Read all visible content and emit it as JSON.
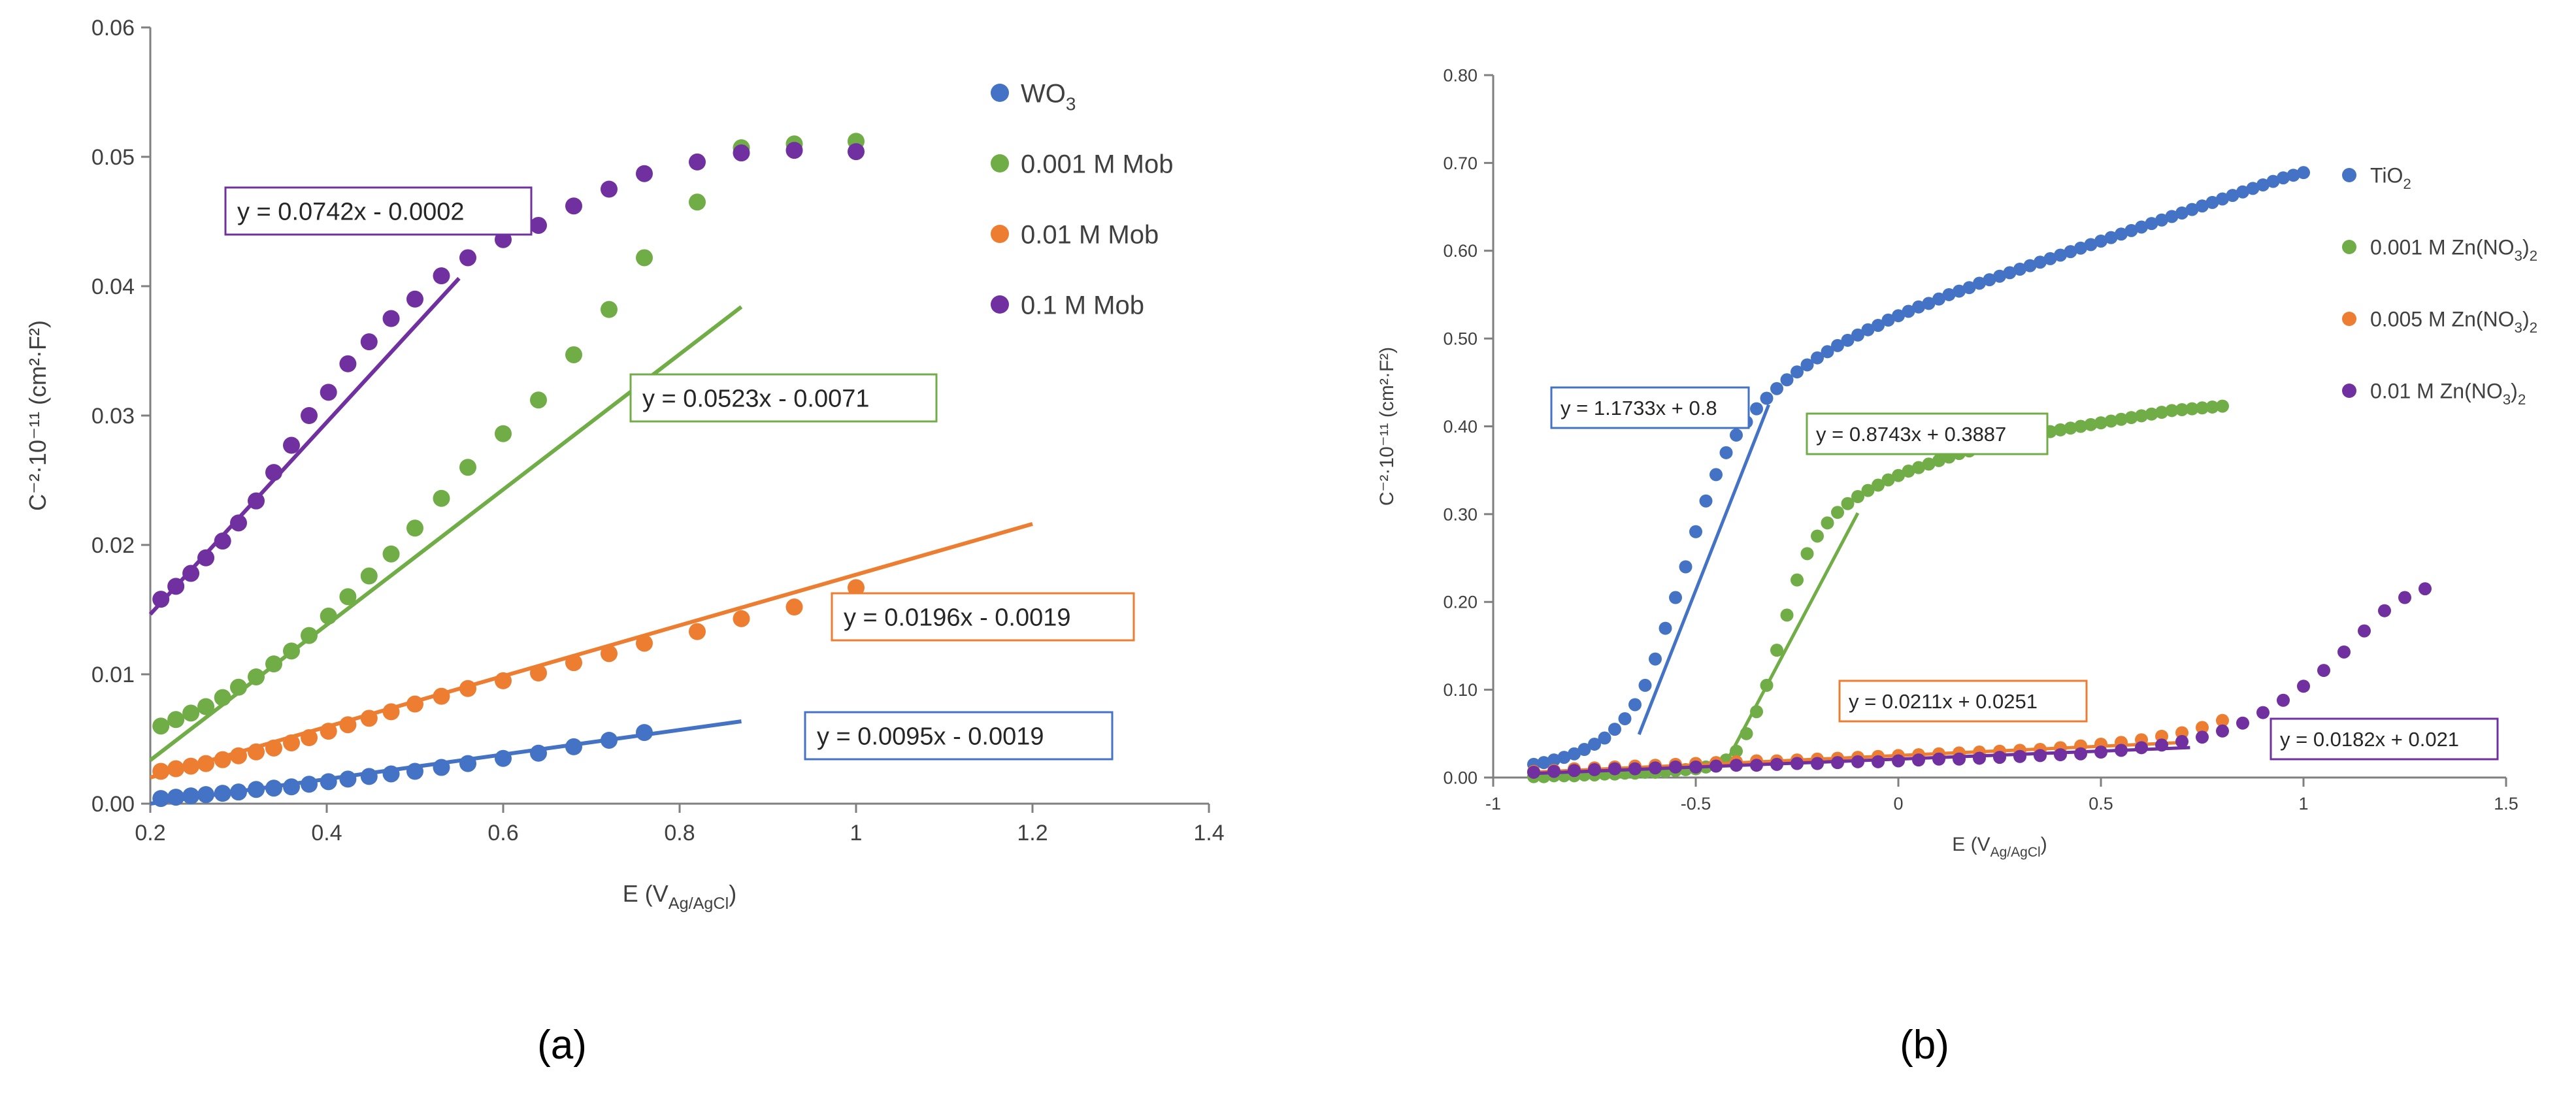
{
  "chart_data": [
    {
      "type": "scatter",
      "panel_label": "(a)",
      "xlabel": "E (V",
      "xlabel_sub": "Ag/AgCl",
      "xlabel_close": ")",
      "ylabel": "C⁻²·10⁻¹¹ (cm²·F²)",
      "xlim": [
        0.2,
        1.4
      ],
      "ylim": [
        0,
        0.06
      ],
      "xticks": [
        0.2,
        0.4,
        0.6,
        0.8,
        1.0,
        1.2,
        1.4
      ],
      "xtick_labels": [
        "0.2",
        "0.4",
        "0.6",
        "0.8",
        "1",
        "1.2",
        "1.4"
      ],
      "yticks": [
        0,
        0.01,
        0.02,
        0.03,
        0.04,
        0.05,
        0.06
      ],
      "ytick_labels": [
        "0.00",
        "0.01",
        "0.02",
        "0.03",
        "0.04",
        "0.05",
        "0.06"
      ],
      "legend_position": "top-right",
      "series": [
        {
          "name": "WO",
          "name_sub": "3",
          "color": "#4472c4",
          "x": [
            0.212,
            0.229,
            0.246,
            0.263,
            0.282,
            0.3,
            0.32,
            0.34,
            0.36,
            0.38,
            0.402,
            0.424,
            0.448,
            0.473,
            0.5,
            0.53,
            0.56,
            0.6,
            0.64,
            0.68,
            0.72,
            0.76
          ],
          "y": [
            0.0004,
            0.0005,
            0.0006,
            0.0007,
            0.0008,
            0.0009,
            0.0011,
            0.0012,
            0.0013,
            0.0015,
            0.0017,
            0.0019,
            0.0021,
            0.0023,
            0.0025,
            0.0028,
            0.0031,
            0.0035,
            0.0039,
            0.0044,
            0.0049,
            0.0055
          ],
          "fit": {
            "label": "y = 0.0095x - 0.0019",
            "slope": 0.0095,
            "intercept": -0.0019,
            "x_range": [
              0.2,
              0.87
            ],
            "label_position": "lower-right"
          }
        },
        {
          "name": "0.001 M Mob",
          "color": "#70ad47",
          "x": [
            0.212,
            0.229,
            0.246,
            0.263,
            0.282,
            0.3,
            0.32,
            0.34,
            0.36,
            0.38,
            0.402,
            0.424,
            0.448,
            0.473,
            0.5,
            0.53,
            0.56,
            0.6,
            0.64,
            0.68,
            0.72,
            0.76,
            0.82,
            0.87,
            0.93,
            1.0
          ],
          "y": [
            0.006,
            0.0065,
            0.007,
            0.0075,
            0.0082,
            0.009,
            0.0098,
            0.0108,
            0.0118,
            0.013,
            0.0145,
            0.016,
            0.0176,
            0.0193,
            0.0213,
            0.0236,
            0.026,
            0.0286,
            0.0312,
            0.0347,
            0.0382,
            0.0422,
            0.0465,
            0.0507,
            0.051,
            0.0512
          ],
          "fit": {
            "label": "y = 0.0523x - 0.0071",
            "slope": 0.0523,
            "intercept": -0.0071,
            "x_range": [
              0.2,
              0.87
            ],
            "label_position": "middle"
          }
        },
        {
          "name": "0.01 M Mob",
          "color": "#ed7d31",
          "x": [
            0.212,
            0.229,
            0.246,
            0.263,
            0.282,
            0.3,
            0.32,
            0.34,
            0.36,
            0.38,
            0.402,
            0.424,
            0.448,
            0.473,
            0.5,
            0.53,
            0.56,
            0.6,
            0.64,
            0.68,
            0.72,
            0.76,
            0.82,
            0.87,
            0.93,
            1.0
          ],
          "y": [
            0.0025,
            0.0027,
            0.0029,
            0.0031,
            0.0034,
            0.0037,
            0.004,
            0.0043,
            0.0047,
            0.0051,
            0.0056,
            0.0061,
            0.0066,
            0.0071,
            0.0077,
            0.0083,
            0.0089,
            0.0095,
            0.0101,
            0.0109,
            0.0116,
            0.0124,
            0.0133,
            0.0143,
            0.0152,
            0.0167
          ],
          "fit": {
            "label": "y = 0.0196x - 0.0019",
            "slope": 0.0196,
            "intercept": -0.0019,
            "x_range": [
              0.2,
              1.2
            ],
            "label_position": "right"
          }
        },
        {
          "name": "0.1 M Mob",
          "color": "#7030a0",
          "x": [
            0.212,
            0.229,
            0.246,
            0.263,
            0.282,
            0.3,
            0.32,
            0.34,
            0.36,
            0.38,
            0.402,
            0.424,
            0.448,
            0.473,
            0.5,
            0.53,
            0.56,
            0.6,
            0.64,
            0.68,
            0.72,
            0.76,
            0.82,
            0.87,
            0.93,
            1.0
          ],
          "y": [
            0.0158,
            0.0168,
            0.0178,
            0.019,
            0.0203,
            0.0217,
            0.0234,
            0.0256,
            0.0277,
            0.03,
            0.0318,
            0.034,
            0.0357,
            0.0375,
            0.039,
            0.0408,
            0.0422,
            0.0436,
            0.0447,
            0.0462,
            0.0475,
            0.0487,
            0.0496,
            0.0503,
            0.0505,
            0.0504
          ],
          "fit": {
            "label": "y = 0.0742x - 0.0002",
            "slope": 0.0742,
            "intercept": -0.0002,
            "x_range": [
              0.2,
              0.55
            ],
            "label_position": "top-left"
          }
        }
      ]
    },
    {
      "type": "scatter",
      "panel_label": "(b)",
      "xlabel": "E (V",
      "xlabel_sub": "Ag/AgCl",
      "xlabel_close": ")",
      "ylabel": "C⁻²·10⁻¹¹ (cm²·F²)",
      "xlim": [
        -1,
        1.5
      ],
      "ylim": [
        0,
        0.8
      ],
      "xticks": [
        -1,
        -0.5,
        0,
        0.5,
        1,
        1.5
      ],
      "xtick_labels": [
        "-1",
        "-0.5",
        "0",
        "0.5",
        "1",
        "1.5"
      ],
      "yticks": [
        0,
        0.1,
        0.2,
        0.3,
        0.4,
        0.5,
        0.6,
        0.7,
        0.8
      ],
      "ytick_labels": [
        "0.00",
        "0.10",
        "0.20",
        "0.30",
        "0.40",
        "0.50",
        "0.60",
        "0.70",
        "0.80"
      ],
      "legend_position": "top-right",
      "series": [
        {
          "name": "TiO",
          "name_sub": "2",
          "color": "#4472c4",
          "x": [
            -0.9,
            -0.875,
            -0.85,
            -0.825,
            -0.8,
            -0.775,
            -0.75,
            -0.725,
            -0.7,
            -0.675,
            -0.65,
            -0.625,
            -0.6,
            -0.575,
            -0.55,
            -0.525,
            -0.5,
            -0.475,
            -0.45,
            -0.425,
            -0.4,
            -0.375,
            -0.35,
            -0.325,
            -0.3,
            -0.275,
            -0.25,
            -0.225,
            -0.2,
            -0.175,
            -0.15,
            -0.125,
            -0.1,
            -0.075,
            -0.05,
            -0.025,
            0,
            0.025,
            0.05,
            0.075,
            0.1,
            0.125,
            0.15,
            0.175,
            0.2,
            0.225,
            0.25,
            0.275,
            0.3,
            0.325,
            0.35,
            0.375,
            0.4,
            0.425,
            0.45,
            0.475,
            0.5,
            0.525,
            0.55,
            0.575,
            0.6,
            0.625,
            0.65,
            0.675,
            0.7,
            0.725,
            0.75,
            0.775,
            0.8,
            0.825,
            0.85,
            0.875,
            0.9,
            0.925,
            0.95,
            0.975,
            1.0
          ],
          "y": [
            0.015,
            0.017,
            0.02,
            0.023,
            0.027,
            0.032,
            0.038,
            0.045,
            0.055,
            0.067,
            0.083,
            0.105,
            0.135,
            0.17,
            0.205,
            0.24,
            0.28,
            0.315,
            0.345,
            0.37,
            0.39,
            0.405,
            0.42,
            0.432,
            0.443,
            0.453,
            0.462,
            0.47,
            0.478,
            0.485,
            0.492,
            0.498,
            0.504,
            0.51,
            0.515,
            0.521,
            0.526,
            0.531,
            0.536,
            0.54,
            0.545,
            0.55,
            0.554,
            0.558,
            0.563,
            0.567,
            0.571,
            0.575,
            0.579,
            0.583,
            0.587,
            0.591,
            0.595,
            0.599,
            0.603,
            0.607,
            0.611,
            0.615,
            0.619,
            0.623,
            0.627,
            0.631,
            0.635,
            0.639,
            0.643,
            0.647,
            0.651,
            0.655,
            0.659,
            0.663,
            0.667,
            0.671,
            0.675,
            0.679,
            0.683,
            0.686,
            0.689
          ],
          "fit": {
            "label": "y = 1.1733x + 0.8",
            "slope": 1.1733,
            "intercept": 0.8,
            "x_range": [
              -0.64,
              -0.32
            ],
            "label_position": "left"
          }
        },
        {
          "name": "0.001 M Zn(NO",
          "name_sub": "3",
          "name_close": ")",
          "name_sub2": "2",
          "color": "#70ad47",
          "x": [
            -0.9,
            -0.875,
            -0.85,
            -0.825,
            -0.8,
            -0.775,
            -0.75,
            -0.725,
            -0.7,
            -0.675,
            -0.65,
            -0.625,
            -0.6,
            -0.575,
            -0.55,
            -0.525,
            -0.5,
            -0.475,
            -0.45,
            -0.425,
            -0.4,
            -0.375,
            -0.35,
            -0.325,
            -0.3,
            -0.275,
            -0.25,
            -0.225,
            -0.2,
            -0.175,
            -0.15,
            -0.125,
            -0.1,
            -0.075,
            -0.05,
            -0.025,
            0,
            0.025,
            0.05,
            0.075,
            0.1,
            0.125,
            0.15,
            0.175,
            0.2,
            0.225,
            0.25,
            0.275,
            0.3,
            0.325,
            0.35,
            0.375,
            0.4,
            0.425,
            0.45,
            0.475,
            0.5,
            0.525,
            0.55,
            0.575,
            0.6,
            0.625,
            0.65,
            0.675,
            0.7,
            0.725,
            0.75,
            0.775,
            0.8
          ],
          "y": [
            0.001,
            0.001,
            0.002,
            0.002,
            0.002,
            0.003,
            0.003,
            0.004,
            0.004,
            0.005,
            0.005,
            0.006,
            0.006,
            0.007,
            0.008,
            0.009,
            0.01,
            0.012,
            0.015,
            0.02,
            0.03,
            0.05,
            0.075,
            0.105,
            0.145,
            0.185,
            0.225,
            0.255,
            0.275,
            0.29,
            0.302,
            0.312,
            0.32,
            0.327,
            0.333,
            0.339,
            0.344,
            0.349,
            0.353,
            0.357,
            0.361,
            0.365,
            0.369,
            0.372,
            0.375,
            0.378,
            0.381,
            0.384,
            0.387,
            0.39,
            0.392,
            0.394,
            0.396,
            0.398,
            0.4,
            0.402,
            0.404,
            0.406,
            0.408,
            0.41,
            0.412,
            0.414,
            0.416,
            0.418,
            0.419,
            0.42,
            0.421,
            0.422,
            0.423
          ],
          "fit": {
            "label": "y = 0.8743x + 0.3887",
            "slope": 0.8743,
            "intercept": 0.3887,
            "x_range": [
              -0.43,
              -0.1
            ],
            "label_position": "middle"
          }
        },
        {
          "name": "0.005 M Zn(NO",
          "name_sub": "3",
          "name_close": ")",
          "name_sub2": "2",
          "color": "#ed7d31",
          "x": [
            -0.9,
            -0.85,
            -0.8,
            -0.75,
            -0.7,
            -0.65,
            -0.6,
            -0.55,
            -0.5,
            -0.45,
            -0.4,
            -0.35,
            -0.3,
            -0.25,
            -0.2,
            -0.15,
            -0.1,
            -0.05,
            0,
            0.05,
            0.1,
            0.15,
            0.2,
            0.25,
            0.3,
            0.35,
            0.4,
            0.45,
            0.5,
            0.55,
            0.6,
            0.65,
            0.7,
            0.75,
            0.8
          ],
          "y": [
            0.007,
            0.008,
            0.01,
            0.011,
            0.012,
            0.013,
            0.014,
            0.015,
            0.016,
            0.017,
            0.018,
            0.019,
            0.019,
            0.02,
            0.021,
            0.022,
            0.023,
            0.024,
            0.025,
            0.026,
            0.027,
            0.028,
            0.029,
            0.03,
            0.031,
            0.032,
            0.034,
            0.036,
            0.038,
            0.04,
            0.043,
            0.047,
            0.051,
            0.057,
            0.065
          ],
          "fit": {
            "label": "y = 0.0211x + 0.0251",
            "slope": 0.0211,
            "intercept": 0.0251,
            "x_range": [
              -0.9,
              0.7
            ],
            "label_position": "lower-middle"
          }
        },
        {
          "name": "0.01 M Zn(NO",
          "name_sub": "3",
          "name_close": ")",
          "name_sub2": "2",
          "color": "#7030a0",
          "x": [
            -0.9,
            -0.85,
            -0.8,
            -0.75,
            -0.7,
            -0.65,
            -0.6,
            -0.55,
            -0.5,
            -0.45,
            -0.4,
            -0.35,
            -0.3,
            -0.25,
            -0.2,
            -0.15,
            -0.1,
            -0.05,
            0,
            0.05,
            0.1,
            0.15,
            0.2,
            0.25,
            0.3,
            0.35,
            0.4,
            0.45,
            0.5,
            0.55,
            0.6,
            0.65,
            0.7,
            0.75,
            0.8,
            0.85,
            0.9,
            0.95,
            1.0,
            1.05,
            1.1,
            1.15,
            1.2,
            1.25,
            1.3
          ],
          "y": [
            0.006,
            0.007,
            0.008,
            0.009,
            0.01,
            0.01,
            0.011,
            0.012,
            0.012,
            0.013,
            0.014,
            0.014,
            0.015,
            0.016,
            0.016,
            0.017,
            0.018,
            0.018,
            0.019,
            0.02,
            0.021,
            0.021,
            0.022,
            0.023,
            0.024,
            0.025,
            0.026,
            0.027,
            0.029,
            0.031,
            0.034,
            0.037,
            0.041,
            0.046,
            0.053,
            0.062,
            0.074,
            0.088,
            0.104,
            0.122,
            0.143,
            0.167,
            0.19,
            0.205,
            0.215
          ],
          "fit": {
            "label": "y = 0.0182x + 0.021",
            "slope": 0.0182,
            "intercept": 0.021,
            "x_range": [
              -0.9,
              0.72
            ],
            "label_position": "lower-right"
          }
        }
      ]
    }
  ]
}
